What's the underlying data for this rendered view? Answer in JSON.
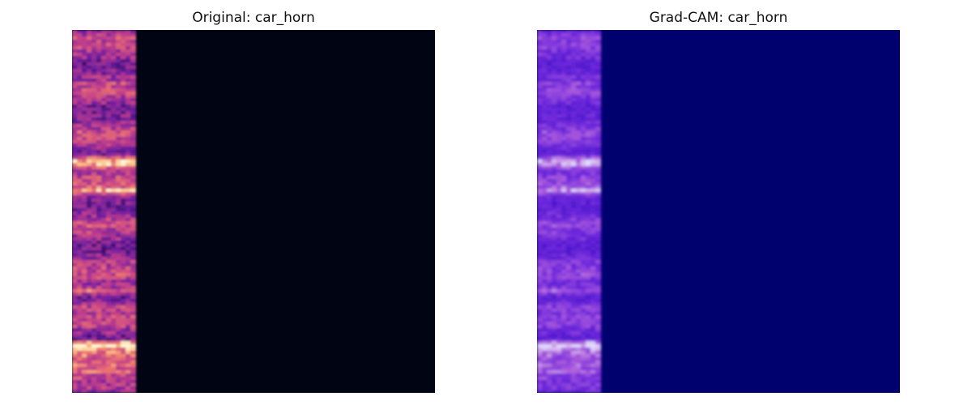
{
  "figure": {
    "panels": [
      {
        "title": "Original: car_horn",
        "colormap": "magma",
        "background_color": "#000413"
      },
      {
        "title": "Grad-CAM: car_horn",
        "colormap": "magma + jet overlay",
        "background_color": "#00006f"
      }
    ]
  }
}
